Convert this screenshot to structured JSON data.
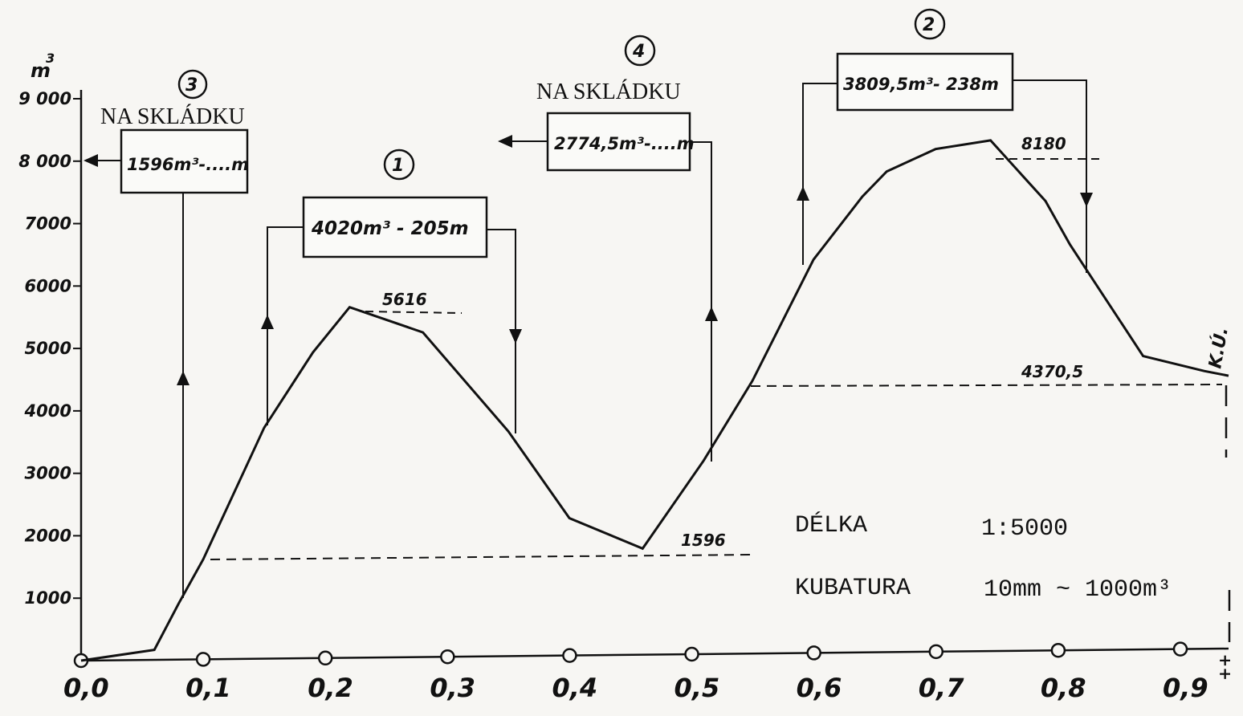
{
  "chart_data": {
    "type": "line",
    "title": "",
    "ylabel": "m",
    "ylabel_sup": "3",
    "xlabel": "",
    "x_ticks": [
      "0,0",
      "0,1",
      "0,2",
      "0,3",
      "0,4",
      "0,5",
      "0,6",
      "0,7",
      "0,8",
      "0,9"
    ],
    "y_ticks": [
      "9 000",
      "8 000",
      "7000",
      "6000",
      "5000",
      "4000",
      "3000",
      "2000",
      "1000"
    ],
    "y_tick_values": [
      9000,
      8000,
      7000,
      6000,
      5000,
      4000,
      3000,
      2000,
      1000
    ],
    "xlim": [
      0,
      0.94
    ],
    "ylim": [
      0,
      9000
    ],
    "grid": false,
    "series": [
      {
        "x": [
          0.0,
          0.06,
          0.08,
          0.1,
          0.15,
          0.19,
          0.22,
          0.28,
          0.35,
          0.4,
          0.46,
          0.51,
          0.55,
          0.6,
          0.64,
          0.66,
          0.7,
          0.745,
          0.79,
          0.81,
          0.83,
          0.87,
          0.92,
          0.94
        ],
        "y": [
          0,
          160,
          900,
          1600,
          3700,
          4900,
          5616,
          5200,
          3600,
          2200,
          1700,
          3100,
          4370.5,
          6300,
          7300,
          7700,
          8050,
          8180,
          7200,
          6500,
          5900,
          4700,
          4450,
          4370.5
        ]
      }
    ],
    "annotations": {
      "peak_5616": "5616",
      "peak_8180": "8180",
      "level_1596": "1596",
      "level_4370": "4370,5",
      "ku": "K.Ú.",
      "end_mark": "++"
    },
    "boxes": [
      {
        "num": "1",
        "text": "4020m³ - 205m"
      },
      {
        "num": "2",
        "text": "3809,5m³- 238m"
      },
      {
        "num": "3",
        "text": "1596m³-....m",
        "header": "NA SKLÁDKU"
      },
      {
        "num": "4",
        "text": "2774,5m³-....m",
        "header": "NA SKLÁDKU"
      }
    ],
    "legend": {
      "length_label": "DÉLKA",
      "length_scale": "1:5000",
      "volume_label": "KUBATURA",
      "volume_scale": "10mm ~ 1000m³"
    }
  }
}
